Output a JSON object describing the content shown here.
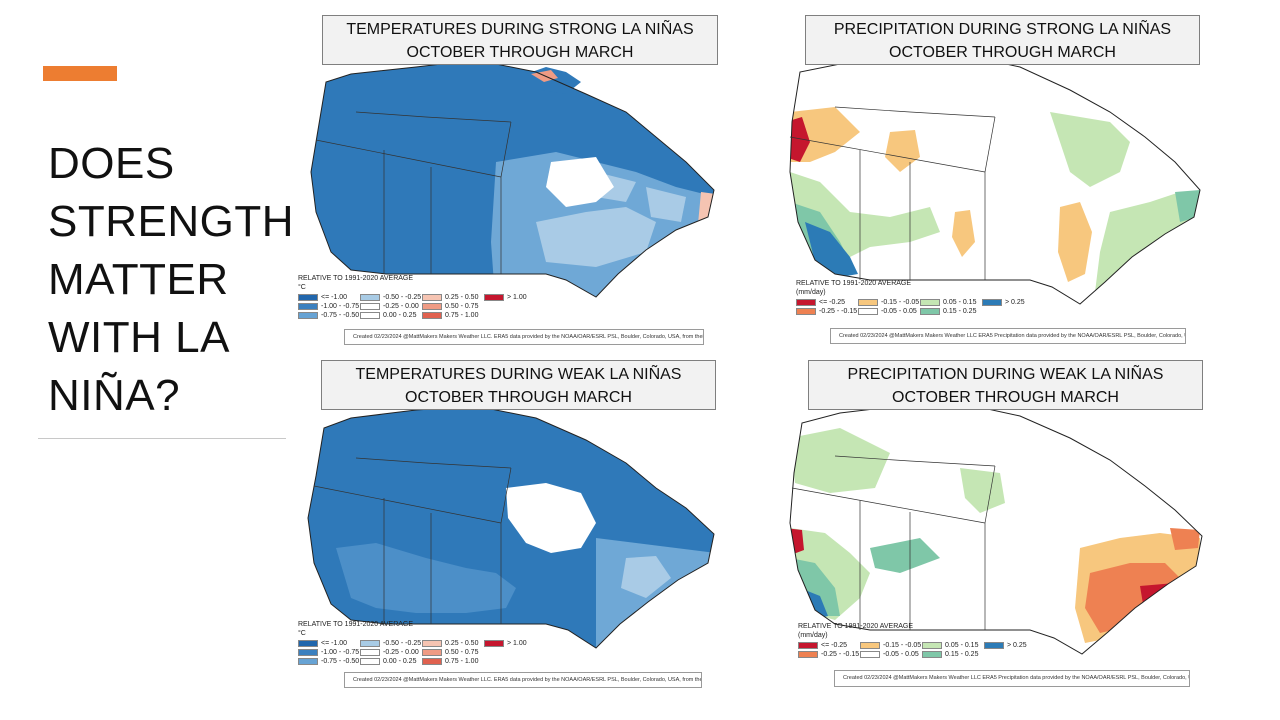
{
  "slide": {
    "title_lines": [
      "DOES",
      "STRENGTH",
      "MATTER",
      "WITH LA",
      "NIÑA?"
    ],
    "accent_color": "#ed7d31"
  },
  "temperature_legend": {
    "header": "RELATIVE TO 1991-2020 AVERAGE",
    "unit": "°C",
    "items": [
      {
        "label": "<= -1.00",
        "color": "#2166ac"
      },
      {
        "label": "-1.00 - -0.75",
        "color": "#3b80bf"
      },
      {
        "label": "-0.75 - -0.50",
        "color": "#67a3d4"
      },
      {
        "label": "-0.50 - -0.25",
        "color": "#a8cbe5"
      },
      {
        "label": "-0.25 - 0.00",
        "color": "#ffffff"
      },
      {
        "label": "0.00 - 0.25",
        "color": "#ffffff"
      },
      {
        "label": "0.25 - 0.50",
        "color": "#f6c4b2"
      },
      {
        "label": "0.50 - 0.75",
        "color": "#ef9b84"
      },
      {
        "label": "0.75 - 1.00",
        "color": "#e0614f"
      },
      {
        "label": "> 1.00",
        "color": "#c5162e"
      }
    ]
  },
  "precipitation_legend": {
    "header": "RELATIVE TO 1991-2020 AVERAGE",
    "unit": "(mm/day)",
    "items": [
      {
        "label": "<= -0.25",
        "color": "#c5162e"
      },
      {
        "label": "-0.25 - -0.15",
        "color": "#ee8152"
      },
      {
        "label": "-0.15 - -0.05",
        "color": "#f7c77e"
      },
      {
        "label": "-0.05 - 0.05",
        "color": "#ffffff"
      },
      {
        "label": "0.05 - 0.15",
        "color": "#c5e6b4"
      },
      {
        "label": "0.15 - 0.25",
        "color": "#7fc7a8"
      },
      {
        "label": "> 0.25",
        "color": "#2c7bb6"
      }
    ]
  },
  "maps": {
    "strong_temp": {
      "title_line1": "TEMPERATURES DURING STRONG LA NIÑAS",
      "title_line2": "OCTOBER THROUGH MARCH",
      "credit": "Created 02/23/2024 @MattMakers Makers Weather LLC. ERA5 data provided by the NOAA/OAR/ESRL PSL, Boulder, Colorado, USA, from their"
    },
    "strong_precip": {
      "title_line1": "PRECIPITATION DURING STRONG LA NIÑAS",
      "title_line2": "OCTOBER THROUGH MARCH",
      "credit": "Created 02/23/2024 @MattMakers Makers Weather LLC ERA5 Precipitation data provided by the NOAA/OAR/ESRL PSL, Boulder, Colorado, USA,"
    },
    "weak_temp": {
      "title_line1": "TEMPERATURES DURING WEAK LA NIÑAS",
      "title_line2": "OCTOBER THROUGH MARCH",
      "credit": "Created 02/23/2024 @MattMakers Makers Weather LLC. ERA5 data provided by the NOAA/OAR/ESRL PSL, Boulder, Colorado, USA, from their"
    },
    "weak_precip": {
      "title_line1": "PRECIPITATION DURING WEAK LA NIÑAS",
      "title_line2": "OCTOBER THROUGH MARCH",
      "credit": "Created 02/23/2024 @MattMakers Makers Weather LLC ERA5 Precipitation data provided by the NOAA/OAR/ESRL PSL, Boulder, Colorado, USA,"
    }
  }
}
